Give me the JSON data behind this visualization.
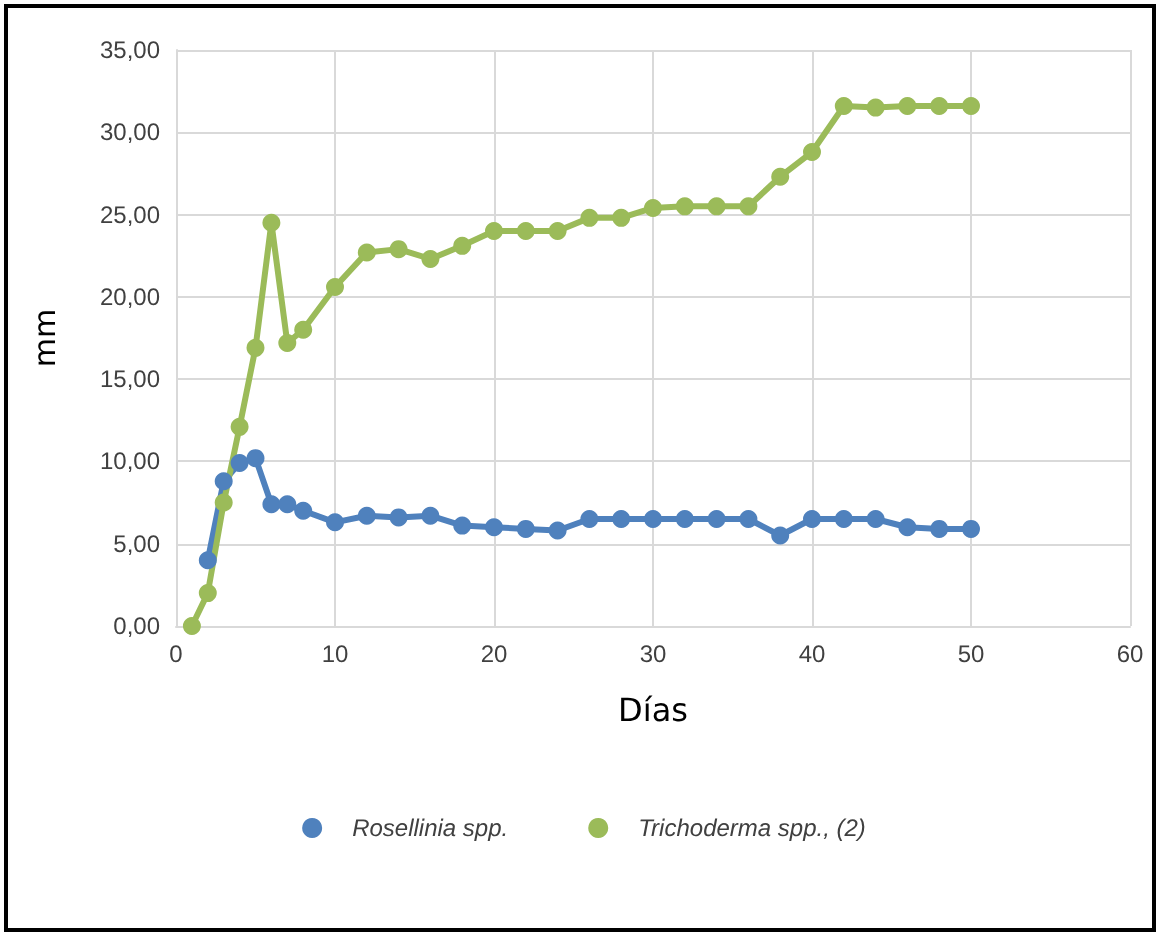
{
  "chart_data": {
    "type": "line",
    "xlabel": "Días",
    "ylabel": "mm",
    "x": [
      1,
      2,
      3,
      4,
      5,
      6,
      7,
      8,
      10,
      12,
      14,
      16,
      18,
      20,
      22,
      24,
      26,
      28,
      30,
      32,
      34,
      36,
      38,
      40,
      42,
      44,
      46,
      48,
      50
    ],
    "series": [
      {
        "name": "Rosellinia spp.",
        "color": "#4f81bd",
        "values": [
          null,
          4.0,
          8.8,
          9.9,
          10.2,
          7.4,
          7.4,
          7.0,
          6.3,
          6.7,
          6.6,
          6.7,
          6.1,
          6.0,
          5.9,
          5.8,
          6.5,
          6.5,
          6.5,
          6.5,
          6.5,
          6.5,
          5.5,
          6.5,
          6.5,
          6.5,
          6.0,
          5.9,
          5.9
        ]
      },
      {
        "name": "Trichoderma spp., (2)",
        "color": "#9bbb59",
        "values": [
          0.0,
          2.0,
          7.5,
          12.1,
          16.9,
          24.5,
          17.2,
          18.0,
          20.6,
          22.7,
          22.9,
          22.3,
          23.1,
          24.0,
          24.0,
          24.0,
          24.8,
          24.8,
          25.4,
          25.5,
          25.5,
          25.5,
          27.3,
          28.8,
          31.6,
          31.5,
          31.6,
          31.6,
          31.6
        ]
      }
    ],
    "xlim": [
      0,
      60
    ],
    "xticks": [
      0,
      10,
      20,
      30,
      40,
      50,
      60
    ],
    "ylim": [
      0,
      35
    ],
    "yticks": [
      {
        "value": 0,
        "label": "0,00"
      },
      {
        "value": 5,
        "label": "5,00"
      },
      {
        "value": 10,
        "label": "10,00"
      },
      {
        "value": 15,
        "label": "15,00"
      },
      {
        "value": 20,
        "label": "20,00"
      },
      {
        "value": 25,
        "label": "25,00"
      },
      {
        "value": 30,
        "label": "30,00"
      },
      {
        "value": 35,
        "label": "35,00"
      }
    ],
    "grid": true,
    "legend": "bottom",
    "marker": "circle",
    "line_style": "solid"
  }
}
